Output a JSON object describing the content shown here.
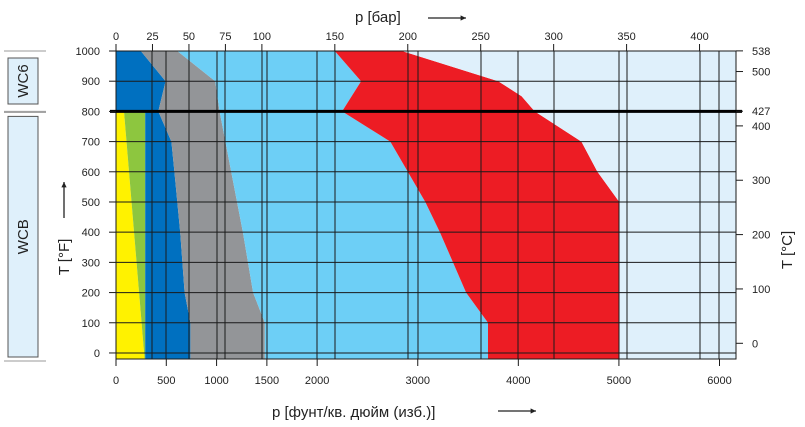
{
  "chart_data": {
    "type": "area",
    "xlabel_top": "p [бар]",
    "xlabel_bottom": "p [фунт/кв. дюйм (изб.)]",
    "ylabel_left": "T [°F]",
    "ylabel_right": "T [°C]",
    "xlim_bar": [
      0,
      425
    ],
    "ylim_F": [
      -20,
      1000
    ],
    "x_ticks_bar": [
      0,
      25,
      50,
      75,
      100,
      150,
      200,
      250,
      300,
      350,
      400
    ],
    "x_ticks_psi": [
      0,
      500,
      1000,
      1500,
      2000,
      3000,
      4000,
      5000,
      6000
    ],
    "y_ticks_F": [
      0,
      100,
      200,
      300,
      400,
      500,
      600,
      700,
      800,
      900,
      1000
    ],
    "y_ticks_C": [
      0,
      100,
      200,
      300,
      400,
      427,
      500,
      538
    ],
    "materials": [
      {
        "name": "WC6",
        "range_F": [
          800,
          1000
        ]
      },
      {
        "name": "WCB",
        "range_F": [
          -20,
          800
        ]
      }
    ],
    "series": [
      {
        "color": "#fff200",
        "lower": [
          [
            -20,
            0
          ],
          [
            800,
            0
          ]
        ],
        "upper": [
          [
            -20,
            19.6
          ],
          [
            800,
            5.5
          ]
        ]
      },
      {
        "color": "#8dc63f",
        "lower": [
          [
            -20,
            19.6
          ],
          [
            800,
            5.5
          ]
        ],
        "upper": [
          [
            -20,
            20
          ],
          [
            800,
            20
          ]
        ]
      },
      {
        "color": "#0070c0",
        "lower": [
          [
            -20,
            20
          ],
          [
            800,
            20
          ],
          [
            800,
            0
          ],
          [
            1000,
            0
          ]
        ],
        "upper": [
          [
            -20,
            51
          ],
          [
            100,
            51
          ],
          [
            200,
            47
          ],
          [
            400,
            44
          ],
          [
            600,
            40
          ],
          [
            700,
            38
          ],
          [
            800,
            29
          ],
          [
            900,
            34
          ],
          [
            1000,
            17
          ]
        ]
      },
      {
        "color": "#939598",
        "lower": [
          [
            -20,
            51
          ],
          [
            100,
            51
          ],
          [
            200,
            47
          ],
          [
            400,
            44
          ],
          [
            600,
            40
          ],
          [
            700,
            38
          ],
          [
            800,
            29
          ],
          [
            900,
            34
          ],
          [
            1000,
            17
          ]
        ],
        "upper": [
          [
            -20,
            102
          ],
          [
            100,
            102
          ],
          [
            200,
            94
          ],
          [
            400,
            87
          ],
          [
            600,
            79
          ],
          [
            700,
            75
          ],
          [
            800,
            71
          ],
          [
            900,
            68
          ],
          [
            1000,
            42
          ]
        ]
      },
      {
        "color": "#6dcff6",
        "lower": [
          [
            -20,
            102
          ],
          [
            100,
            102
          ],
          [
            200,
            94
          ],
          [
            400,
            87
          ],
          [
            600,
            79
          ],
          [
            700,
            75
          ],
          [
            800,
            71
          ],
          [
            900,
            68
          ],
          [
            1000,
            42
          ]
        ],
        "upper": [
          [
            -20,
            255
          ],
          [
            100,
            255
          ],
          [
            200,
            240
          ],
          [
            400,
            222
          ],
          [
            500,
            212
          ],
          [
            600,
            200
          ],
          [
            700,
            188
          ],
          [
            800,
            155
          ],
          [
            900,
            168
          ],
          [
            1000,
            150
          ]
        ]
      },
      {
        "color": "#ed1c24",
        "lower": [
          [
            -20,
            255
          ],
          [
            100,
            255
          ],
          [
            200,
            240
          ],
          [
            400,
            222
          ],
          [
            500,
            212
          ],
          [
            600,
            200
          ],
          [
            700,
            188
          ],
          [
            800,
            155
          ],
          [
            900,
            168
          ],
          [
            1000,
            150
          ]
        ],
        "upper": [
          [
            -20,
            345
          ],
          [
            500,
            345
          ],
          [
            600,
            330
          ],
          [
            700,
            319
          ],
          [
            800,
            287
          ],
          [
            850,
            278
          ],
          [
            900,
            262
          ],
          [
            1000,
            196
          ]
        ]
      },
      {
        "color": "#dff0fb",
        "lower": [
          [
            -20,
            345
          ],
          [
            500,
            345
          ],
          [
            600,
            330
          ],
          [
            700,
            319
          ],
          [
            800,
            287
          ],
          [
            850,
            278
          ],
          [
            900,
            262
          ],
          [
            1000,
            196
          ]
        ],
        "upper": [
          [
            -20,
            425
          ],
          [
            1000,
            425
          ]
        ]
      }
    ]
  }
}
